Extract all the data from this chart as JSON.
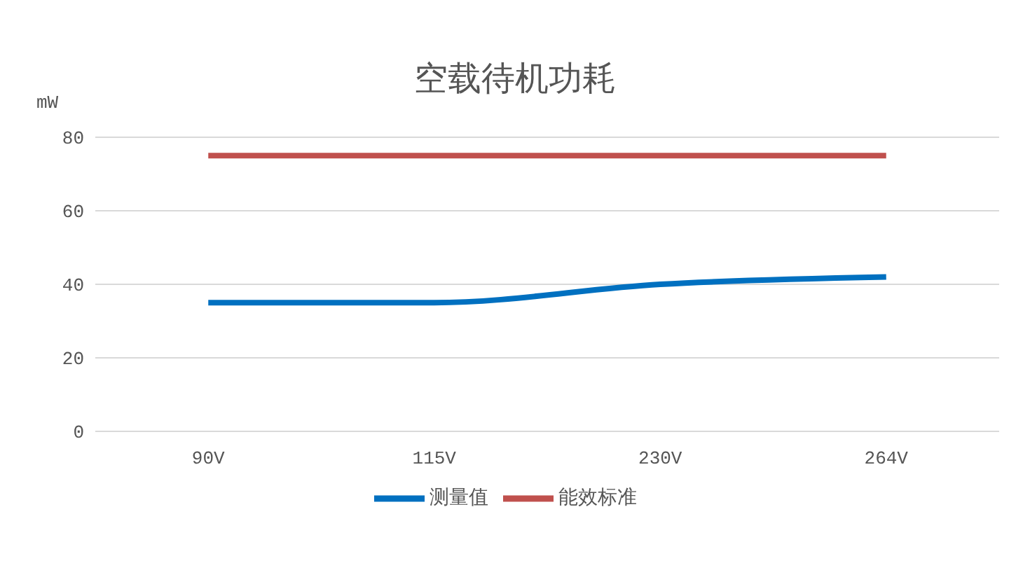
{
  "chart_data": {
    "type": "line",
    "title": "空载待机功耗",
    "ylabel": "mW",
    "categories": [
      "90V",
      "115V",
      "230V",
      "264V"
    ],
    "series": [
      {
        "name": "测量值",
        "color": "#0070c0",
        "values": [
          35,
          35,
          40,
          42
        ]
      },
      {
        "name": "能效标准",
        "color": "#c0504d",
        "values": [
          75,
          75,
          75,
          75
        ]
      }
    ],
    "ylim": [
      0,
      80
    ],
    "yticks": [
      0,
      20,
      40,
      60,
      80
    ],
    "grid": "y",
    "legend": "bottom",
    "marker": "none",
    "line_style": "solid"
  }
}
